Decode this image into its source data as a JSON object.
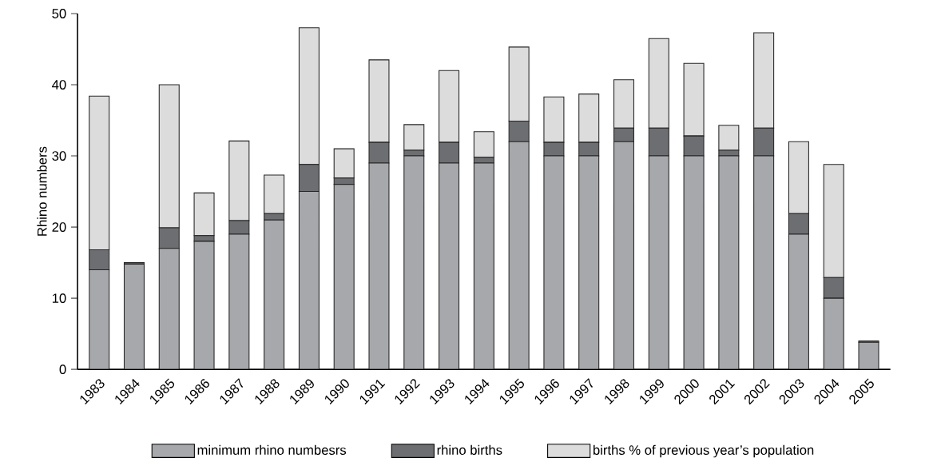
{
  "chart_data": {
    "type": "bar",
    "stacked": true,
    "ylabel": "Rhino numbers",
    "categories": [
      "1983",
      "1984",
      "1985",
      "1986",
      "1987",
      "1988",
      "1989",
      "1990",
      "1991",
      "1992",
      "1993",
      "1994",
      "1995",
      "1996",
      "1997",
      "1998",
      "1999",
      "2000",
      "2001",
      "2002",
      "2003",
      "2004",
      "2005"
    ],
    "series": [
      {
        "name": "minimum rhino numbesrs",
        "color": "#a7a8ab",
        "values": [
          14,
          14.8,
          17,
          18,
          19,
          21,
          25,
          26,
          29,
          30,
          29,
          29,
          32,
          30,
          30,
          32,
          30,
          30,
          30,
          30,
          19,
          10,
          3.8
        ]
      },
      {
        "name": "rhino births",
        "color": "#6d6e71",
        "values": [
          2.8,
          0.2,
          2.9,
          0.8,
          1.9,
          0.9,
          3.8,
          0.9,
          2.9,
          0.8,
          2.9,
          0.8,
          2.9,
          1.9,
          1.9,
          1.9,
          3.9,
          2.8,
          0.8,
          3.9,
          2.9,
          2.9,
          0.2
        ]
      },
      {
        "name": "births % of previous year’s population",
        "color": "#dcdcdc",
        "values": [
          21.6,
          0,
          20.1,
          6,
          11.2,
          5.4,
          19.2,
          4.1,
          11.6,
          3.6,
          10.1,
          3.6,
          10.4,
          6.4,
          6.8,
          6.8,
          12.6,
          10.2,
          3.5,
          13.4,
          10.1,
          15.9,
          0
        ]
      }
    ],
    "ylim": [
      0,
      50
    ],
    "yticks": [
      0,
      10,
      20,
      30,
      40,
      50
    ],
    "legend": "bottom",
    "grid": false
  }
}
